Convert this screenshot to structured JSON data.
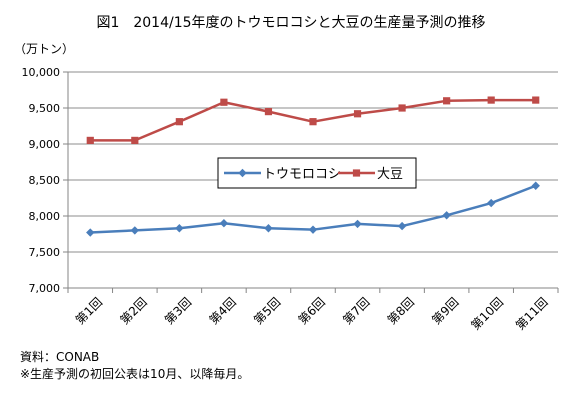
{
  "chart_data": {
    "type": "line",
    "title": "図1　2014/15年度のトウモロコシと大豆の生産量予測の推移",
    "unit_label": "（万トン）",
    "categories": [
      "第1回",
      "第2回",
      "第3回",
      "第4回",
      "第5回",
      "第6回",
      "第7回",
      "第8回",
      "第9回",
      "第10回",
      "第11回"
    ],
    "series": [
      {
        "name": "トウモロコシ",
        "color": "#4A7EBB",
        "marker": "diamond",
        "values": [
          7770,
          7800,
          7830,
          7900,
          7830,
          7810,
          7890,
          7860,
          8010,
          8180,
          8420
        ]
      },
      {
        "name": "大豆",
        "color": "#BE4B48",
        "marker": "square",
        "values": [
          9050,
          9050,
          9310,
          9580,
          9450,
          9310,
          9420,
          9500,
          9600,
          9610,
          9610
        ]
      }
    ],
    "ylim": [
      7000,
      10000
    ],
    "yticks": [
      7000,
      7500,
      8000,
      8500,
      9000,
      9500,
      10000
    ],
    "ytick_labels": [
      "7,000",
      "7,500",
      "8,000",
      "8,500",
      "9,000",
      "9,500",
      "10,000"
    ],
    "grid": true,
    "legend_position": "center"
  },
  "footnotes": {
    "source": "資料：CONAB",
    "note": "※生産予測の初回公表は10月、以降毎月。"
  }
}
